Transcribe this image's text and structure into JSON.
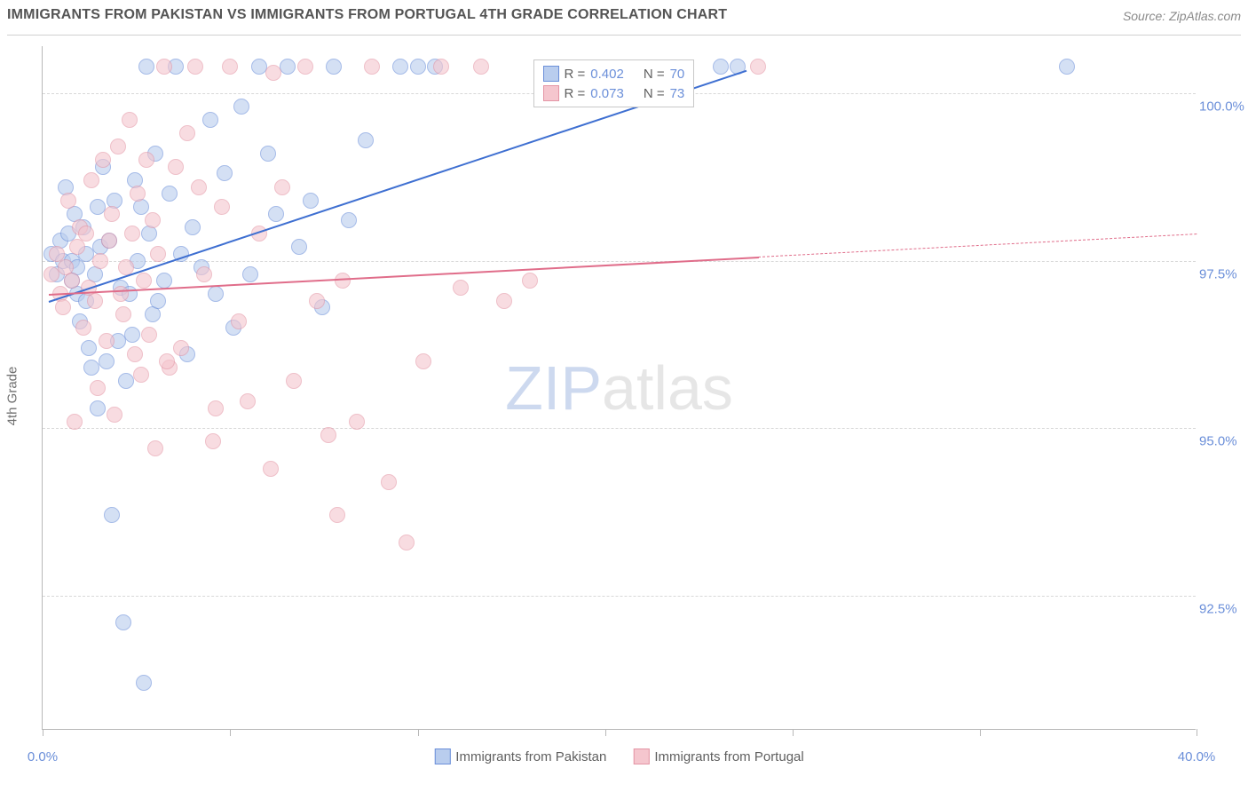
{
  "title": "IMMIGRANTS FROM PAKISTAN VS IMMIGRANTS FROM PORTUGAL 4TH GRADE CORRELATION CHART",
  "source_label": "Source: ",
  "source_name": "ZipAtlas.com",
  "ylabel": "4th Grade",
  "watermark": {
    "zip": "ZIP",
    "atlas": "atlas"
  },
  "chart": {
    "type": "scatter",
    "background_color": "#ffffff",
    "grid_color": "#d8d8d8",
    "axis_color": "#b8b8b8",
    "xlim": [
      0,
      40
    ],
    "ylim": [
      90.5,
      100.7
    ],
    "xtick_positions": [
      0,
      6.5,
      13,
      19.5,
      26,
      32.5,
      40
    ],
    "xtick_labels": {
      "0": "0.0%",
      "40": "40.0%"
    },
    "ytick_positions": [
      92.5,
      95.0,
      97.5,
      100.0
    ],
    "ytick_labels": [
      "92.5%",
      "95.0%",
      "97.5%",
      "100.0%"
    ],
    "label_color": "#6b8fd9",
    "label_fontsize": 15,
    "marker_radius": 9,
    "marker_opacity": 0.6,
    "series": [
      {
        "name": "Immigrants from Pakistan",
        "fill_color": "#b9cdee",
        "stroke_color": "#6b8fd9",
        "line_color": "#3e6fd1",
        "r_value": "0.402",
        "n_value": "70",
        "trend": {
          "x1": 0.2,
          "y1": 96.9,
          "x2": 24.4,
          "y2": 100.35,
          "solid_until_x": 24.4
        },
        "points": [
          [
            0.3,
            97.6
          ],
          [
            0.5,
            97.3
          ],
          [
            0.6,
            97.8
          ],
          [
            0.7,
            97.5
          ],
          [
            0.8,
            98.6
          ],
          [
            0.9,
            97.9
          ],
          [
            1.0,
            97.5
          ],
          [
            1.0,
            97.2
          ],
          [
            1.1,
            98.2
          ],
          [
            1.2,
            97.4
          ],
          [
            1.2,
            97.0
          ],
          [
            1.3,
            96.6
          ],
          [
            1.4,
            98.0
          ],
          [
            1.5,
            97.6
          ],
          [
            1.5,
            96.9
          ],
          [
            1.6,
            96.2
          ],
          [
            1.7,
            95.9
          ],
          [
            1.8,
            97.3
          ],
          [
            1.9,
            98.3
          ],
          [
            1.9,
            95.3
          ],
          [
            2.0,
            97.7
          ],
          [
            2.1,
            98.9
          ],
          [
            2.2,
            96.0
          ],
          [
            2.3,
            97.8
          ],
          [
            2.4,
            93.7
          ],
          [
            2.5,
            98.4
          ],
          [
            2.6,
            96.3
          ],
          [
            2.7,
            97.1
          ],
          [
            2.8,
            92.1
          ],
          [
            2.9,
            95.7
          ],
          [
            3.0,
            97.0
          ],
          [
            3.1,
            96.4
          ],
          [
            3.2,
            98.7
          ],
          [
            3.3,
            97.5
          ],
          [
            3.4,
            98.3
          ],
          [
            3.5,
            91.2
          ],
          [
            3.6,
            100.4
          ],
          [
            3.7,
            97.9
          ],
          [
            3.8,
            96.7
          ],
          [
            3.9,
            99.1
          ],
          [
            4.0,
            96.9
          ],
          [
            4.2,
            97.2
          ],
          [
            4.4,
            98.5
          ],
          [
            4.6,
            100.4
          ],
          [
            4.8,
            97.6
          ],
          [
            5.0,
            96.1
          ],
          [
            5.2,
            98.0
          ],
          [
            5.5,
            97.4
          ],
          [
            5.8,
            99.6
          ],
          [
            6.0,
            97.0
          ],
          [
            6.3,
            98.8
          ],
          [
            6.6,
            96.5
          ],
          [
            6.9,
            99.8
          ],
          [
            7.2,
            97.3
          ],
          [
            7.5,
            100.4
          ],
          [
            7.8,
            99.1
          ],
          [
            8.1,
            98.2
          ],
          [
            8.5,
            100.4
          ],
          [
            8.9,
            97.7
          ],
          [
            9.3,
            98.4
          ],
          [
            9.7,
            96.8
          ],
          [
            10.1,
            100.4
          ],
          [
            10.6,
            98.1
          ],
          [
            11.2,
            99.3
          ],
          [
            12.4,
            100.4
          ],
          [
            13.0,
            100.4
          ],
          [
            13.6,
            100.4
          ],
          [
            23.5,
            100.4
          ],
          [
            24.1,
            100.4
          ],
          [
            35.5,
            100.4
          ]
        ]
      },
      {
        "name": "Immigrants from Portugal",
        "fill_color": "#f5c6ce",
        "stroke_color": "#e495a5",
        "line_color": "#e06d8a",
        "r_value": "0.073",
        "n_value": "73",
        "trend": {
          "x1": 0.2,
          "y1": 97.0,
          "x2": 40.0,
          "y2": 97.9,
          "solid_until_x": 24.8
        },
        "points": [
          [
            0.3,
            97.3
          ],
          [
            0.5,
            97.6
          ],
          [
            0.6,
            97.0
          ],
          [
            0.7,
            96.8
          ],
          [
            0.8,
            97.4
          ],
          [
            0.9,
            98.4
          ],
          [
            1.0,
            97.2
          ],
          [
            1.1,
            95.1
          ],
          [
            1.2,
            97.7
          ],
          [
            1.3,
            98.0
          ],
          [
            1.4,
            96.5
          ],
          [
            1.5,
            97.9
          ],
          [
            1.6,
            97.1
          ],
          [
            1.7,
            98.7
          ],
          [
            1.8,
            96.9
          ],
          [
            1.9,
            95.6
          ],
          [
            2.0,
            97.5
          ],
          [
            2.1,
            99.0
          ],
          [
            2.2,
            96.3
          ],
          [
            2.3,
            97.8
          ],
          [
            2.4,
            98.2
          ],
          [
            2.5,
            95.2
          ],
          [
            2.6,
            99.2
          ],
          [
            2.7,
            97.0
          ],
          [
            2.8,
            96.7
          ],
          [
            2.9,
            97.4
          ],
          [
            3.0,
            99.6
          ],
          [
            3.1,
            97.9
          ],
          [
            3.2,
            96.1
          ],
          [
            3.3,
            98.5
          ],
          [
            3.4,
            95.8
          ],
          [
            3.5,
            97.2
          ],
          [
            3.6,
            99.0
          ],
          [
            3.7,
            96.4
          ],
          [
            3.8,
            98.1
          ],
          [
            3.9,
            94.7
          ],
          [
            4.0,
            97.6
          ],
          [
            4.2,
            100.4
          ],
          [
            4.4,
            95.9
          ],
          [
            4.6,
            98.9
          ],
          [
            4.8,
            96.2
          ],
          [
            5.0,
            99.4
          ],
          [
            5.3,
            100.4
          ],
          [
            5.6,
            97.3
          ],
          [
            5.9,
            94.8
          ],
          [
            6.2,
            98.3
          ],
          [
            6.5,
            100.4
          ],
          [
            6.8,
            96.6
          ],
          [
            7.1,
            95.4
          ],
          [
            7.5,
            97.9
          ],
          [
            7.9,
            94.4
          ],
          [
            8.3,
            98.6
          ],
          [
            8.7,
            95.7
          ],
          [
            9.1,
            100.4
          ],
          [
            9.5,
            96.9
          ],
          [
            9.9,
            94.9
          ],
          [
            10.4,
            97.2
          ],
          [
            10.9,
            95.1
          ],
          [
            11.4,
            100.4
          ],
          [
            12.0,
            94.2
          ],
          [
            12.6,
            93.3
          ],
          [
            13.2,
            96.0
          ],
          [
            13.8,
            100.4
          ],
          [
            14.5,
            97.1
          ],
          [
            15.2,
            100.4
          ],
          [
            16.0,
            96.9
          ],
          [
            16.9,
            97.2
          ],
          [
            10.2,
            93.7
          ],
          [
            8.0,
            100.3
          ],
          [
            5.4,
            98.6
          ],
          [
            4.3,
            96.0
          ],
          [
            6.0,
            95.3
          ],
          [
            24.8,
            100.4
          ]
        ]
      }
    ],
    "legend_top": {
      "r_label": "R = ",
      "n_label": "N = "
    },
    "legend_bottom_swatch_size": 18
  }
}
